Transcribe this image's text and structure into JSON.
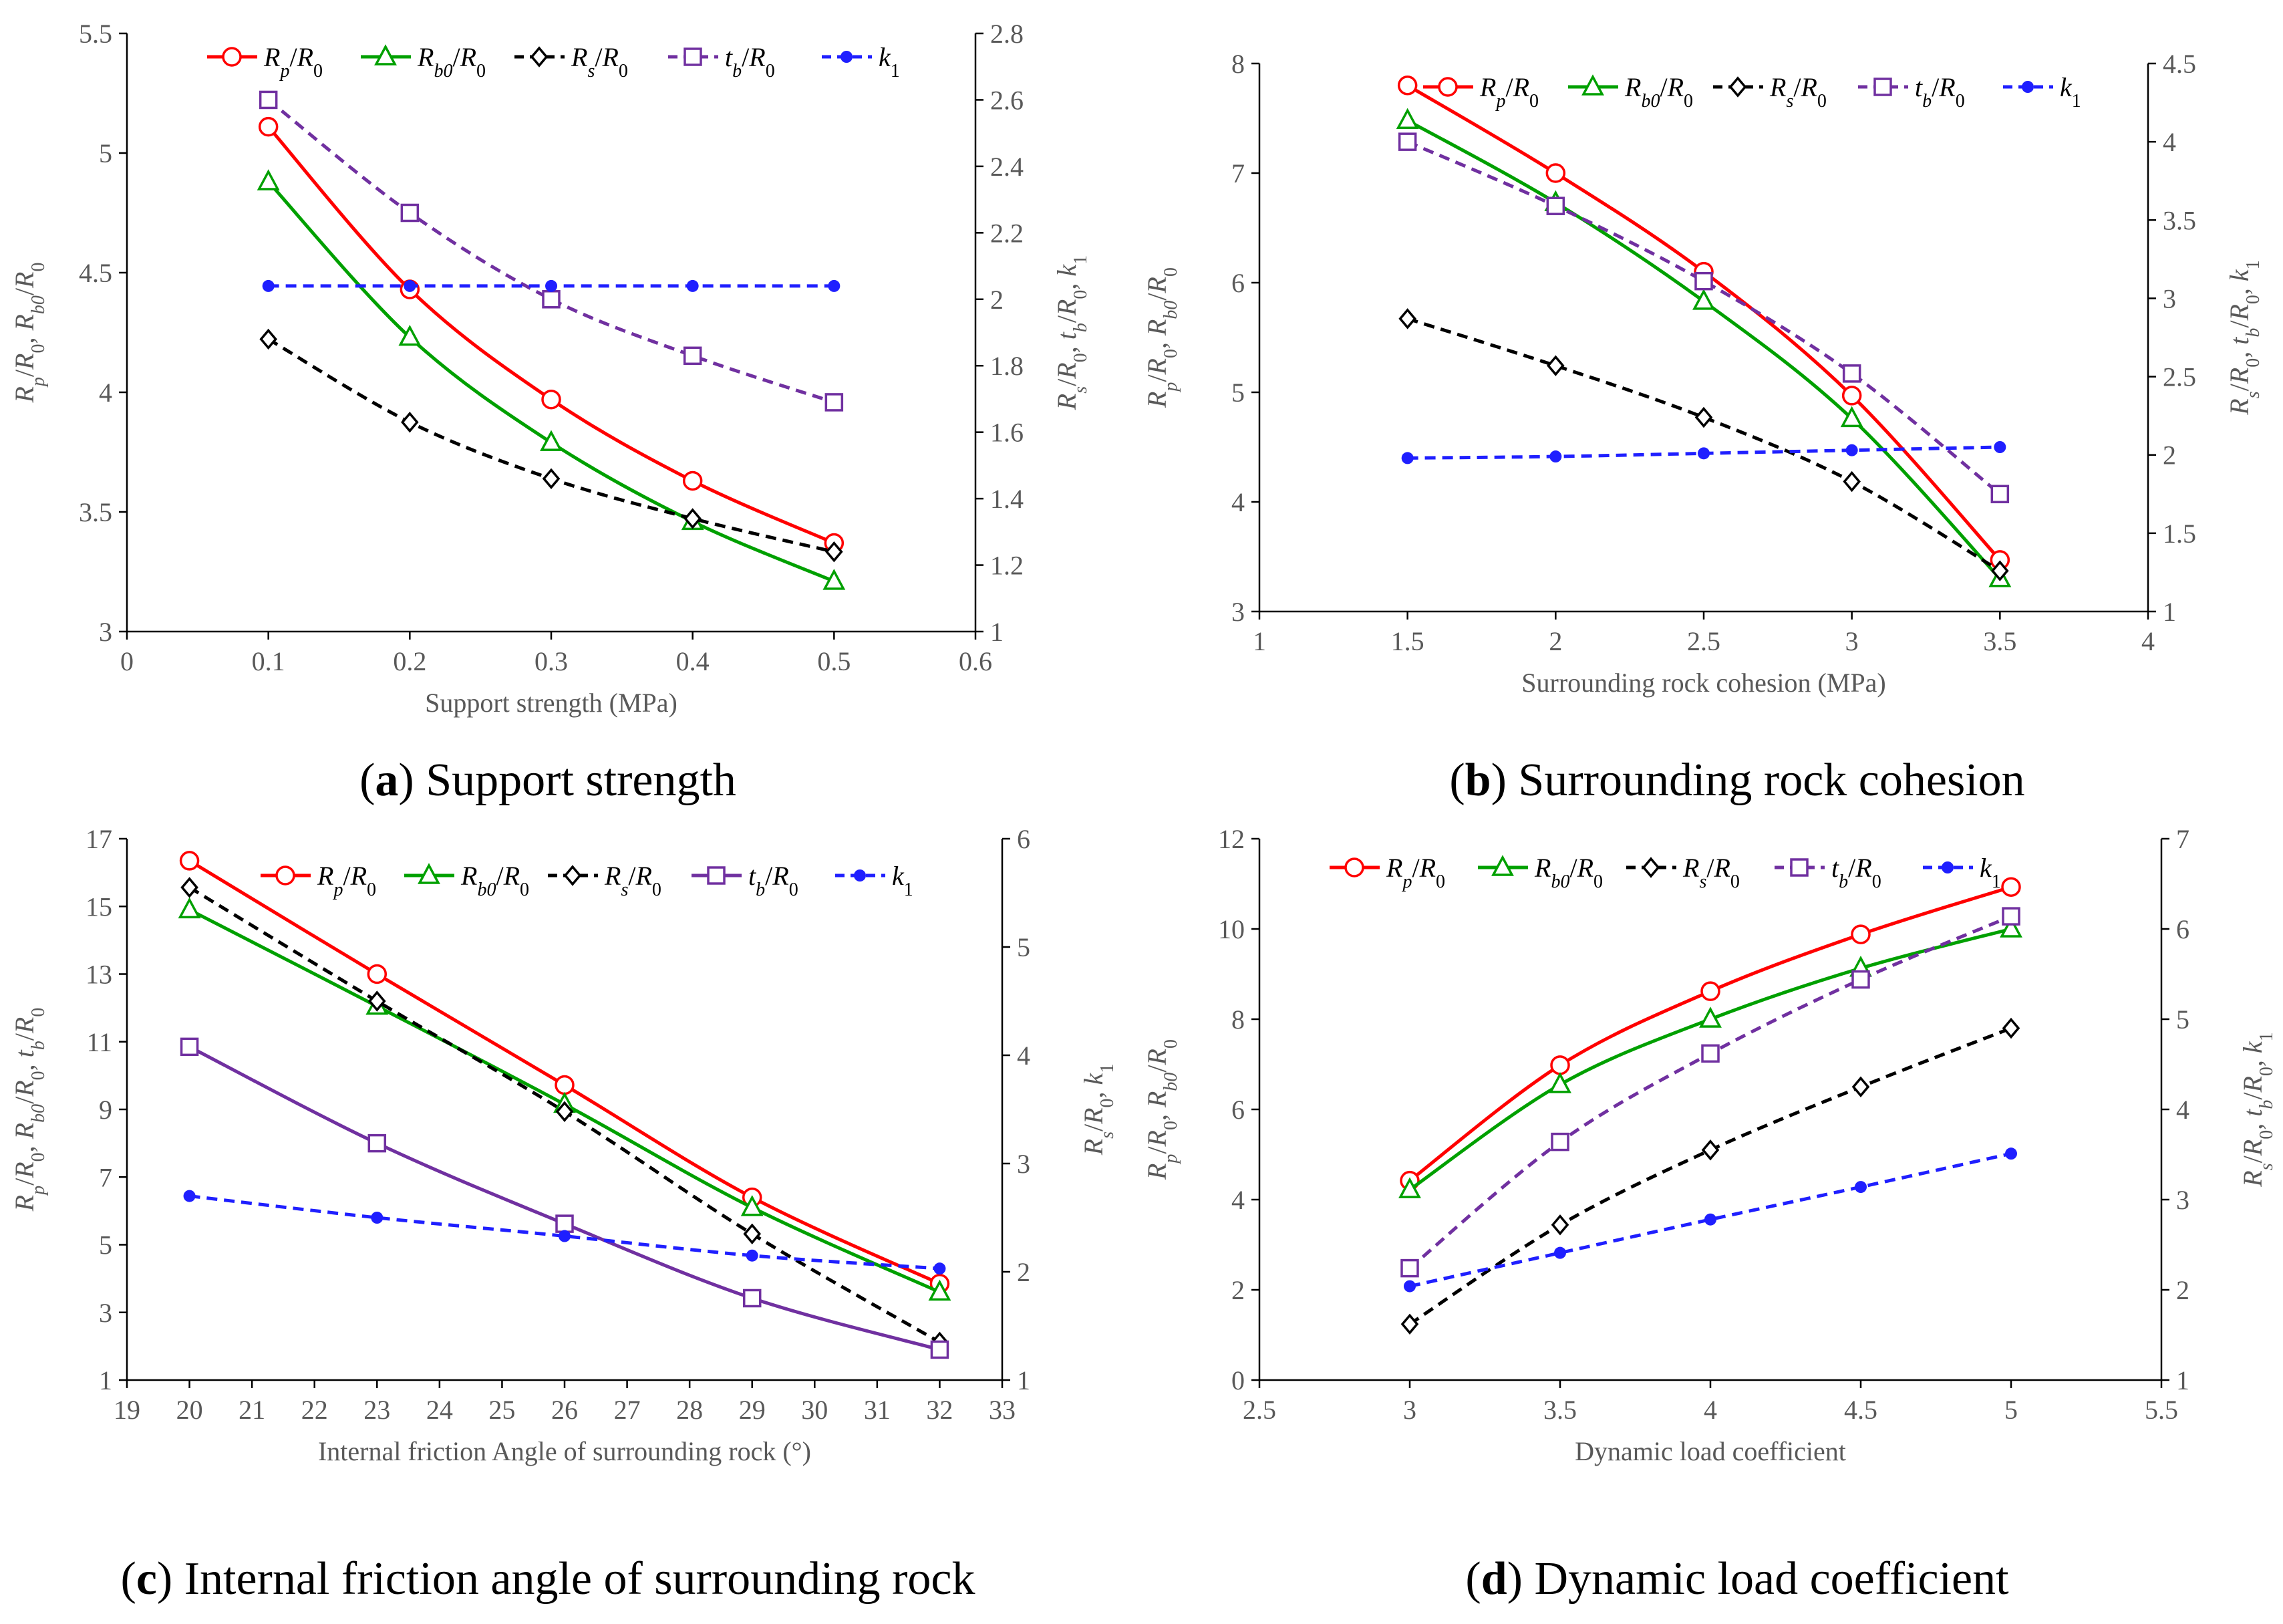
{
  "colors": {
    "rp": "#ff0000",
    "rb0": "#00a000",
    "rs": "#000000",
    "tb": "#7030a0",
    "k1": "#1f1fff",
    "axis": "#000000",
    "text": "#595959"
  },
  "legend_labels": {
    "rp": "Rp/R0",
    "rb0": "Rb0/R0",
    "rs": "Rs/R0",
    "tb": "tb/R0",
    "k1": "k1"
  },
  "chart_data": [
    {
      "id": "a",
      "type": "line",
      "caption_letter": "(a)",
      "caption_text": " Support strength",
      "xlabel": "Support strength (MPa)",
      "ylabel_left": "Rp/R0, Rb0/R0",
      "ylabel_right": "Rs/R0, tb/R0, k1",
      "xlim": [
        0,
        0.6
      ],
      "xticks": [
        0,
        0.1,
        0.2,
        0.3,
        0.4,
        0.5,
        0.6
      ],
      "ylim_left": [
        3,
        5.5
      ],
      "yticks_left": [
        3,
        3.5,
        4,
        4.5,
        5,
        5.5
      ],
      "ylim_right": [
        1,
        2.8
      ],
      "yticks_right": [
        1,
        1.2,
        1.4,
        1.6,
        1.8,
        2,
        2.2,
        2.4,
        2.6,
        2.8
      ],
      "x": [
        0.1,
        0.2,
        0.3,
        0.4,
        0.5
      ],
      "series": [
        {
          "key": "rp",
          "axis": "left",
          "style": "solid",
          "values": [
            5.11,
            4.43,
            3.97,
            3.63,
            3.37
          ]
        },
        {
          "key": "rb0",
          "axis": "left",
          "style": "solid",
          "values": [
            4.88,
            4.23,
            3.79,
            3.46,
            3.21
          ]
        },
        {
          "key": "rs",
          "axis": "right",
          "style": "dashed",
          "values": [
            1.88,
            1.63,
            1.46,
            1.34,
            1.24
          ]
        },
        {
          "key": "tb",
          "axis": "right",
          "style": "dashed",
          "values": [
            2.6,
            2.26,
            2.0,
            1.83,
            1.69
          ]
        },
        {
          "key": "k1",
          "axis": "right",
          "style": "dashed",
          "values": [
            2.04,
            2.04,
            2.04,
            2.04,
            2.04
          ]
        }
      ]
    },
    {
      "id": "b",
      "type": "line",
      "caption_letter": "(b)",
      "caption_text": " Surrounding rock cohesion",
      "xlabel": "Surrounding rock cohesion (MPa)",
      "ylabel_left": "Rp/R0, Rb0/R0",
      "ylabel_right": "Rs/R0, tb/R0, k1",
      "xlim": [
        1,
        4
      ],
      "xticks": [
        1,
        1.5,
        2,
        2.5,
        3,
        3.5,
        4
      ],
      "ylim_left": [
        3,
        8
      ],
      "yticks_left": [
        3,
        4,
        5,
        6,
        7,
        8
      ],
      "ylim_right": [
        1,
        4.5
      ],
      "yticks_right": [
        1,
        1.5,
        2,
        2.5,
        3,
        3.5,
        4,
        4.5
      ],
      "x": [
        1.5,
        2,
        2.5,
        3,
        3.5
      ],
      "series": [
        {
          "key": "rp",
          "axis": "left",
          "style": "solid",
          "values": [
            7.8,
            7.0,
            6.1,
            4.97,
            3.47
          ]
        },
        {
          "key": "rb0",
          "axis": "left",
          "style": "solid",
          "values": [
            7.48,
            6.73,
            5.83,
            4.76,
            3.3
          ]
        },
        {
          "key": "rs",
          "axis": "right",
          "style": "dashed",
          "values": [
            2.87,
            2.57,
            2.24,
            1.83,
            1.26
          ]
        },
        {
          "key": "tb",
          "axis": "right",
          "style": "dashed",
          "values": [
            4.0,
            3.59,
            3.11,
            2.52,
            1.75
          ]
        },
        {
          "key": "k1",
          "axis": "right",
          "style": "dashed",
          "values": [
            1.98,
            1.99,
            2.01,
            2.03,
            2.05
          ]
        }
      ]
    },
    {
      "id": "c",
      "type": "line",
      "caption_letter": "(c)",
      "caption_text": " Internal friction angle of surrounding rock",
      "xlabel": "Internal friction Angle of surrounding rock (°)",
      "ylabel_left": "Rp/R0, Rb0/R0, tb/R0",
      "ylabel_right": "Rs/R0, k1",
      "xlim": [
        19,
        33
      ],
      "xticks": [
        19,
        20,
        21,
        22,
        23,
        24,
        25,
        26,
        27,
        28,
        29,
        30,
        31,
        32,
        33
      ],
      "ylim_left": [
        1,
        17
      ],
      "yticks_left": [
        1,
        3,
        5,
        7,
        9,
        11,
        13,
        15,
        17
      ],
      "ylim_right": [
        1,
        6
      ],
      "yticks_right": [
        1,
        2,
        3,
        4,
        5,
        6
      ],
      "x": [
        20,
        23,
        26,
        29,
        32
      ],
      "series": [
        {
          "key": "rp",
          "axis": "left",
          "style": "solid",
          "values": [
            16.35,
            13.0,
            9.72,
            6.4,
            3.85
          ]
        },
        {
          "key": "rb0",
          "axis": "left",
          "style": "solid",
          "values": [
            14.9,
            12.05,
            9.15,
            6.1,
            3.6
          ]
        },
        {
          "key": "rs",
          "axis": "right",
          "style": "dashed",
          "values": [
            5.55,
            4.5,
            3.48,
            2.35,
            1.35
          ]
        },
        {
          "key": "tb",
          "axis": "left",
          "style": "solid",
          "values": [
            10.85,
            8.0,
            5.62,
            3.42,
            1.9
          ]
        },
        {
          "key": "k1",
          "axis": "right",
          "style": "dashed",
          "values": [
            2.7,
            2.5,
            2.33,
            2.15,
            2.03
          ]
        }
      ]
    },
    {
      "id": "d",
      "type": "line",
      "caption_letter": "(d)",
      "caption_text": " Dynamic load coefficient",
      "xlabel": "Dynamic load coefficient",
      "ylabel_left": "Rp/R0, Rb0/R0",
      "ylabel_right": "Rs/R0, tb/R0, k1",
      "xlim": [
        2.5,
        5.5
      ],
      "xticks": [
        2.5,
        3,
        3.5,
        4,
        4.5,
        5,
        5.5
      ],
      "ylim_left": [
        0,
        12
      ],
      "yticks_left": [
        0,
        2,
        4,
        6,
        8,
        10,
        12
      ],
      "ylim_right": [
        1,
        7
      ],
      "yticks_right": [
        1,
        2,
        3,
        4,
        5,
        6,
        7
      ],
      "x": [
        3,
        3.5,
        4,
        4.5,
        5
      ],
      "series": [
        {
          "key": "rp",
          "axis": "left",
          "style": "solid",
          "values": [
            4.42,
            6.98,
            8.62,
            9.88,
            10.93
          ]
        },
        {
          "key": "rb0",
          "axis": "left",
          "style": "solid",
          "values": [
            4.22,
            6.55,
            8.0,
            9.13,
            10.0
          ]
        },
        {
          "key": "rs",
          "axis": "right",
          "style": "dashed",
          "values": [
            1.62,
            2.72,
            3.55,
            4.25,
            4.9
          ]
        },
        {
          "key": "tb",
          "axis": "right",
          "style": "dashed",
          "values": [
            2.24,
            3.64,
            4.62,
            5.44,
            6.14
          ]
        },
        {
          "key": "k1",
          "axis": "right",
          "style": "dashed",
          "values": [
            2.04,
            2.41,
            2.78,
            3.14,
            3.51
          ]
        }
      ]
    }
  ]
}
